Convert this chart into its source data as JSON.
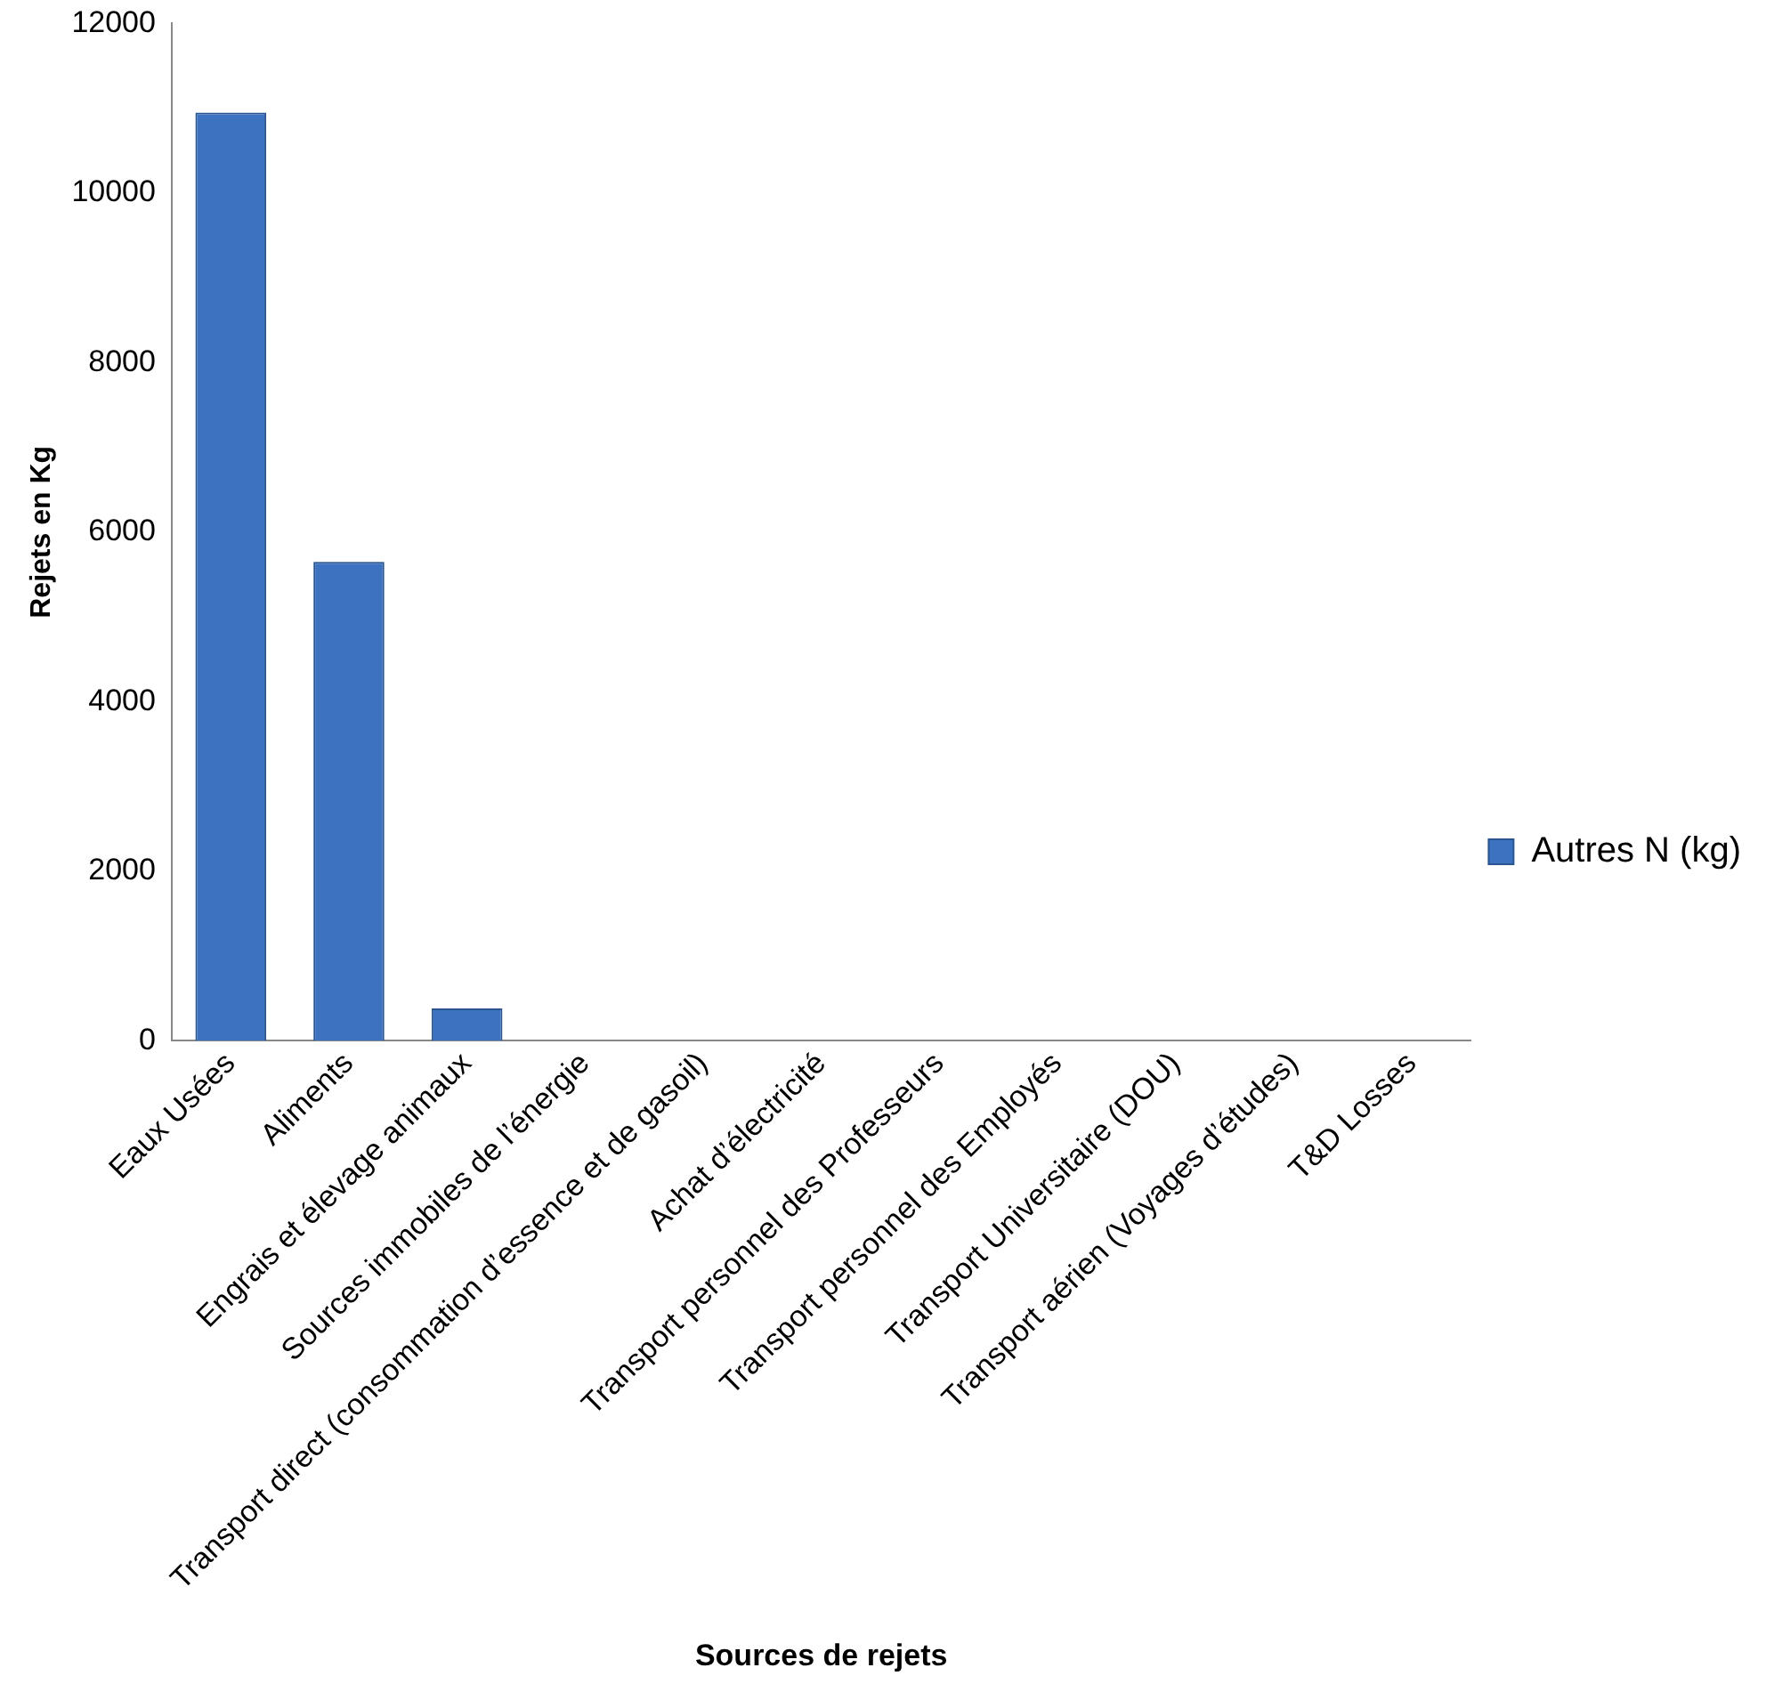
{
  "chart_data": {
    "type": "bar",
    "xlabel": "Sources de rejets",
    "ylabel": "Rejets en Kg",
    "categories": [
      "Eaux Usées",
      "Aliments",
      "Engrais et élevage animaux",
      "Sources immobiles de l’énergie",
      "Transport direct (consommation d’essence et de gasoil)",
      "Achat d’électricité",
      "Transport personnel des Professeurs",
      "Transport personnel des Employés",
      "Transport Universitaire (DOU)",
      "Transport aérien (Voyages d’études)",
      "T&D Losses"
    ],
    "series": [
      {
        "name": "Autres N (kg)",
        "color": "#3d72c0",
        "values": [
          10950,
          5650,
          380,
          0,
          0,
          0,
          0,
          0,
          0,
          0,
          0
        ]
      }
    ],
    "ylim": [
      0,
      12000
    ],
    "yticks": [
      0,
      2000,
      4000,
      6000,
      8000,
      10000,
      12000
    ],
    "grid": false,
    "legend": "right"
  }
}
